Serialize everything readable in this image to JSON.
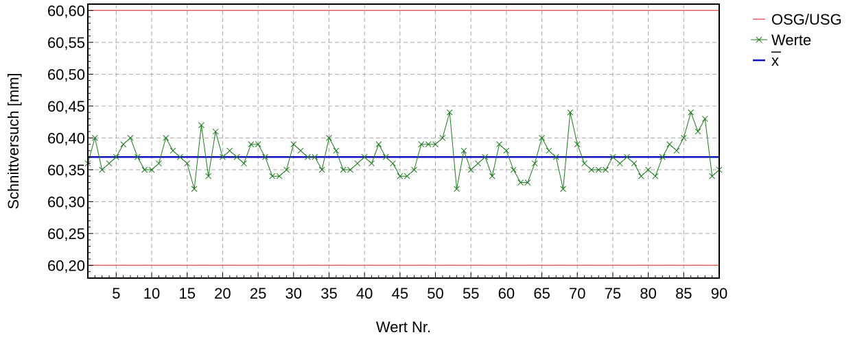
{
  "chart_data": {
    "type": "line",
    "xlabel": "Wert Nr.",
    "ylabel": "Schnittversuch [mm]",
    "xlim": [
      1,
      90
    ],
    "ylim": [
      60.18,
      60.61
    ],
    "x_ticks": [
      5,
      10,
      15,
      20,
      25,
      30,
      35,
      40,
      45,
      50,
      55,
      60,
      65,
      70,
      75,
      80,
      85,
      90
    ],
    "x_tick_labels": [
      "5",
      "10",
      "15",
      "20",
      "25",
      "30",
      "35",
      "40",
      "45",
      "50",
      "55",
      "60",
      "65",
      "70",
      "75",
      "80",
      "85",
      "90"
    ],
    "y_ticks": [
      60.2,
      60.25,
      60.3,
      60.35,
      60.4,
      60.45,
      60.5,
      60.55,
      60.6
    ],
    "y_tick_labels": [
      "60,20",
      "60,25",
      "60,30",
      "60,35",
      "60,40",
      "60,45",
      "60,50",
      "60,55",
      "60,60"
    ],
    "grid": true,
    "legend_position": "right",
    "legend": [
      {
        "label": "OSG/USG",
        "color": "#e06060",
        "marker": "line"
      },
      {
        "label": "Werte",
        "color": "#1a7a1a",
        "marker": "x"
      },
      {
        "label": "x",
        "color": "#1010c0",
        "marker": "line",
        "overline": true
      }
    ],
    "series": [
      {
        "name": "Werte",
        "color": "#1a7a1a",
        "x": [
          1,
          2,
          3,
          4,
          5,
          6,
          7,
          8,
          9,
          10,
          11,
          12,
          13,
          14,
          15,
          16,
          17,
          18,
          19,
          20,
          21,
          22,
          23,
          24,
          25,
          26,
          27,
          28,
          29,
          30,
          31,
          32,
          33,
          34,
          35,
          36,
          37,
          38,
          39,
          40,
          41,
          42,
          43,
          44,
          45,
          46,
          47,
          48,
          49,
          50,
          51,
          52,
          53,
          54,
          55,
          56,
          57,
          58,
          59,
          60,
          61,
          62,
          63,
          64,
          65,
          66,
          67,
          68,
          69,
          70,
          71,
          72,
          73,
          74,
          75,
          76,
          77,
          78,
          79,
          80,
          81,
          82,
          83,
          84,
          85,
          86,
          87,
          88,
          89,
          90
        ],
        "values": [
          60.36,
          60.4,
          60.35,
          60.36,
          60.37,
          60.39,
          60.4,
          60.37,
          60.35,
          60.35,
          60.36,
          60.4,
          60.38,
          60.37,
          60.36,
          60.32,
          60.42,
          60.34,
          60.41,
          60.37,
          60.38,
          60.37,
          60.36,
          60.39,
          60.39,
          60.37,
          60.34,
          60.34,
          60.35,
          60.39,
          60.38,
          60.37,
          60.37,
          60.35,
          60.4,
          60.38,
          60.35,
          60.35,
          60.36,
          60.37,
          60.36,
          60.39,
          60.37,
          60.36,
          60.34,
          60.34,
          60.35,
          60.39,
          60.39,
          60.39,
          60.4,
          60.44,
          60.32,
          60.38,
          60.35,
          60.36,
          60.37,
          60.34,
          60.39,
          60.38,
          60.35,
          60.33,
          60.33,
          60.36,
          60.4,
          60.38,
          60.37,
          60.32,
          60.44,
          60.39,
          60.36,
          60.35,
          60.35,
          60.35,
          60.37,
          60.36,
          60.37,
          60.36,
          60.34,
          60.35,
          60.34,
          60.37,
          60.39,
          60.38,
          60.4,
          60.44,
          60.41,
          60.43,
          60.34,
          60.35
        ]
      },
      {
        "name": "OSG/USG",
        "color": "#e06060",
        "type": "hline",
        "values": [
          60.6,
          60.2
        ]
      },
      {
        "name": "x",
        "color": "#1010c0",
        "type": "hline",
        "values": [
          60.37
        ]
      }
    ]
  }
}
